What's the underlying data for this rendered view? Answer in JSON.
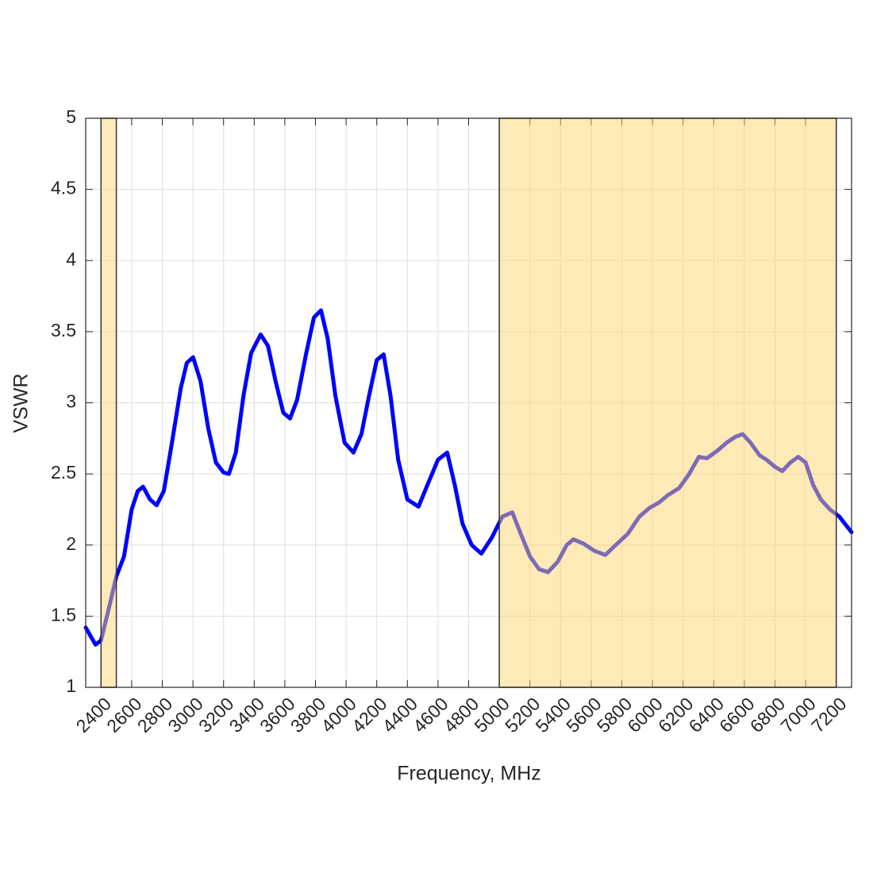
{
  "chart_data": {
    "type": "line",
    "xlabel": "Frequency, MHz",
    "ylabel": "VSWR",
    "x": [
      2300,
      2364,
      2400,
      2450,
      2500,
      2550,
      2600,
      2640,
      2675,
      2720,
      2763,
      2810,
      2860,
      2920,
      2960,
      3001,
      3050,
      3100,
      3150,
      3200,
      3235,
      3280,
      3330,
      3380,
      3442,
      3490,
      3540,
      3590,
      3634,
      3680,
      3740,
      3790,
      3836,
      3880,
      3930,
      3990,
      4048,
      4100,
      4150,
      4200,
      4245,
      4290,
      4340,
      4400,
      4473,
      4530,
      4600,
      4660,
      4710,
      4760,
      4820,
      4883,
      4950,
      5020,
      5085,
      5140,
      5200,
      5260,
      5318,
      5380,
      5440,
      5484,
      5550,
      5620,
      5692,
      5760,
      5840,
      5915,
      5980,
      6044,
      6100,
      6174,
      6240,
      6303,
      6355,
      6420,
      6485,
      6540,
      6589,
      6640,
      6700,
      6744,
      6800,
      6848,
      6900,
      6952,
      7000,
      7050,
      7100,
      7159,
      7220,
      7300
    ],
    "series": [
      {
        "color": "#0000ff",
        "values": [
          1.42,
          1.3,
          1.33,
          1.55,
          1.78,
          1.92,
          2.25,
          2.38,
          2.41,
          2.32,
          2.28,
          2.38,
          2.7,
          3.1,
          3.28,
          3.32,
          3.15,
          2.82,
          2.58,
          2.51,
          2.5,
          2.65,
          3.05,
          3.35,
          3.48,
          3.4,
          3.15,
          2.93,
          2.89,
          3.02,
          3.35,
          3.6,
          3.65,
          3.45,
          3.05,
          2.72,
          2.65,
          2.78,
          3.05,
          3.3,
          3.34,
          3.05,
          2.6,
          2.32,
          2.27,
          2.42,
          2.6,
          2.65,
          2.42,
          2.15,
          2.0,
          1.94,
          2.05,
          2.2,
          2.23,
          2.08,
          1.92,
          1.83,
          1.81,
          1.88,
          2.0,
          2.04,
          2.01,
          1.96,
          1.93,
          2.0,
          2.08,
          2.2,
          2.26,
          2.3,
          2.35,
          2.4,
          2.5,
          2.62,
          2.61,
          2.66,
          2.72,
          2.76,
          2.78,
          2.72,
          2.63,
          2.6,
          2.55,
          2.52,
          2.58,
          2.62,
          2.58,
          2.42,
          2.32,
          2.25,
          2.2,
          2.09
        ]
      }
    ],
    "highlight_regions": [
      [
        2400,
        2500
      ],
      [
        5000,
        7200
      ]
    ],
    "highlight_color": "#fcd66e",
    "xlim": [
      2300,
      7300
    ],
    "xticks": [
      2400,
      2600,
      2800,
      3000,
      3200,
      3400,
      3600,
      3800,
      4000,
      4200,
      4400,
      4600,
      4800,
      5000,
      5200,
      5400,
      5600,
      5800,
      6000,
      6200,
      6400,
      6600,
      6800,
      7000,
      7200
    ],
    "ylim": [
      1,
      5
    ],
    "yticks": [
      1,
      1.5,
      2,
      2.5,
      3,
      3.5,
      4,
      4.5,
      5
    ],
    "grid": true
  }
}
